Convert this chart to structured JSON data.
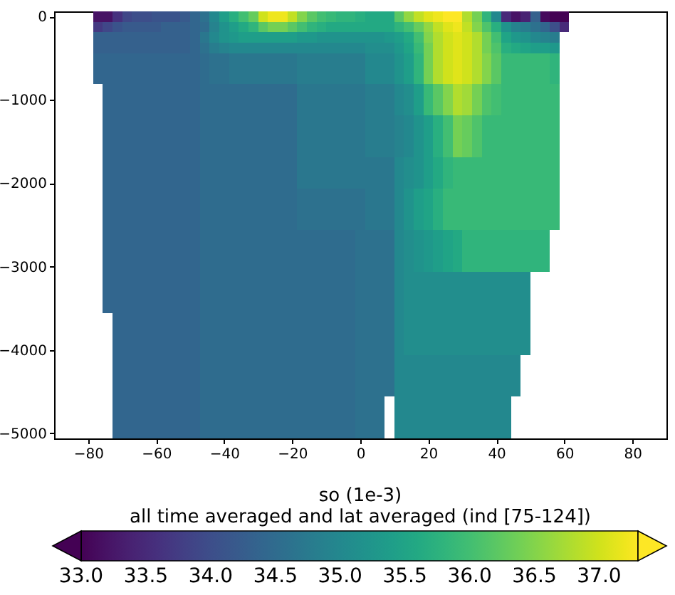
{
  "chart_data": {
    "type": "heatmap",
    "clabel": "so (1e-3)\nall time averaged and lat averaged (ind [75-124])",
    "categories": [
      null,
      null,
      null,
      "−80",
      null,
      null,
      null,
      null,
      null,
      null,
      "−60",
      null,
      null,
      null,
      null,
      null,
      null,
      "−40",
      null,
      null,
      null,
      null,
      null,
      null,
      "−20",
      null,
      null,
      null,
      null,
      null,
      null,
      "0",
      null,
      null,
      null,
      null,
      null,
      null,
      "20",
      null,
      null,
      null,
      null,
      null,
      null,
      "40",
      null,
      null,
      null,
      null,
      null,
      null,
      "60",
      null,
      null,
      null,
      null,
      null,
      null,
      "80",
      null,
      null,
      null
    ],
    "y_categories": [
      "0",
      null,
      null,
      null,
      null,
      null,
      null,
      null,
      "−1000",
      null,
      null,
      null,
      null,
      null,
      null,
      null,
      "−2000",
      null,
      null,
      null,
      null,
      null,
      null,
      null,
      "−3000",
      null,
      null,
      null,
      null,
      null,
      null,
      null,
      "−4000",
      null,
      null,
      null,
      null,
      null,
      null,
      null,
      "−5000"
    ],
    "clim": [
      33.0,
      37.3
    ],
    "cticks": [
      {
        "value": 33,
        "label": "33.0"
      },
      {
        "value": 33.5,
        "label": "33.5"
      },
      {
        "value": 34,
        "label": "34.0"
      },
      {
        "value": 34.5,
        "label": "34.5"
      },
      {
        "value": 35,
        "label": "35.0"
      },
      {
        "value": 35.5,
        "label": "35.5"
      },
      {
        "value": 36,
        "label": "36.0"
      },
      {
        "value": 36.5,
        "label": "36.5"
      },
      {
        "value": 37,
        "label": "37.0"
      }
    ],
    "cells": [
      [
        null,
        null,
        null,
        null,
        33.2,
        33.2,
        33.6,
        33.9,
        34.0,
        34.0,
        34.1,
        34.1,
        34.1,
        34.2,
        34.4,
        34.6,
        35.0,
        35.4,
        35.7,
        36.0,
        36.3,
        37.0,
        37.2,
        37.2,
        36.9,
        36.5,
        36.2,
        36.0,
        35.9,
        35.8,
        35.8,
        35.7,
        35.6,
        35.6,
        35.6,
        36.2,
        36.6,
        36.9,
        37.1,
        37.2,
        37.3,
        37.3,
        36.8,
        36.4,
        35.8,
        35.0,
        33.5,
        33.2,
        33.4,
        34.3,
        33.1,
        33.0,
        33.0,
        null,
        null,
        null,
        null,
        null,
        null,
        null,
        null,
        null,
        null
      ],
      [
        null,
        null,
        null,
        null,
        33.7,
        33.9,
        34.1,
        34.2,
        34.2,
        34.2,
        34.2,
        34.3,
        34.3,
        34.3,
        34.4,
        34.5,
        34.9,
        35.2,
        35.4,
        35.6,
        35.8,
        36.2,
        36.4,
        36.4,
        36.2,
        36.0,
        35.8,
        35.7,
        35.6,
        35.6,
        35.6,
        35.6,
        35.6,
        35.6,
        35.6,
        35.8,
        36.0,
        36.3,
        36.6,
        36.9,
        37.1,
        37.2,
        36.9,
        36.5,
        36.1,
        35.7,
        35.2,
        34.9,
        34.8,
        34.6,
        34.4,
        34.0,
        33.5,
        null,
        null,
        null,
        null,
        null,
        null,
        null,
        null,
        null,
        null
      ],
      [
        null,
        null,
        null,
        null,
        34.3,
        34.3,
        34.3,
        34.3,
        34.3,
        34.3,
        34.3,
        34.3,
        34.3,
        34.3,
        34.4,
        34.7,
        35.0,
        35.2,
        35.3,
        35.4,
        35.4,
        35.4,
        35.4,
        35.4,
        35.4,
        35.3,
        35.3,
        35.2,
        35.2,
        35.2,
        35.2,
        35.2,
        35.2,
        35.2,
        35.3,
        35.4,
        35.6,
        36.0,
        36.5,
        36.8,
        37.0,
        37.1,
        37.0,
        36.8,
        36.4,
        36.0,
        35.5,
        35.3,
        35.2,
        35.0,
        34.9,
        34.8,
        null,
        null,
        null,
        null,
        null,
        null,
        null,
        null,
        null,
        null,
        null
      ],
      [
        null,
        null,
        null,
        null,
        34.3,
        34.3,
        34.3,
        34.3,
        34.3,
        34.3,
        34.3,
        34.3,
        34.3,
        34.3,
        34.4,
        34.6,
        34.8,
        34.9,
        35.0,
        35.0,
        35.0,
        35.0,
        35.0,
        35.0,
        35.0,
        35.0,
        35.0,
        35.0,
        35.0,
        35.0,
        35.0,
        35.0,
        35.1,
        35.1,
        35.1,
        35.3,
        35.5,
        35.9,
        36.4,
        36.8,
        37.0,
        37.1,
        37.0,
        36.8,
        36.4,
        36.1,
        35.7,
        35.6,
        35.5,
        35.4,
        35.4,
        35.3,
        null,
        null,
        null,
        null,
        null,
        null,
        null,
        null,
        null,
        null,
        null
      ],
      [
        null,
        null,
        null,
        null,
        34.4,
        34.4,
        34.4,
        34.4,
        34.4,
        34.4,
        34.4,
        34.4,
        34.4,
        34.4,
        34.4,
        34.5,
        34.6,
        34.6,
        34.7,
        34.7,
        34.7,
        34.7,
        34.7,
        34.7,
        34.7,
        34.8,
        34.8,
        34.8,
        34.8,
        34.8,
        34.8,
        34.8,
        35.0,
        35.0,
        35.0,
        35.2,
        35.4,
        35.8,
        36.4,
        36.8,
        37.0,
        37.1,
        37.0,
        36.8,
        36.5,
        36.2,
        35.9,
        35.9,
        35.9,
        35.9,
        35.9,
        35.8,
        null,
        null,
        null,
        null,
        null,
        null,
        null,
        null,
        null,
        null,
        null
      ],
      [
        null,
        null,
        null,
        null,
        34.4,
        34.4,
        34.4,
        34.4,
        34.4,
        34.4,
        34.4,
        34.4,
        34.4,
        34.4,
        34.4,
        34.5,
        34.6,
        34.6,
        34.7,
        34.7,
        34.7,
        34.7,
        34.7,
        34.7,
        34.7,
        34.8,
        34.8,
        34.8,
        34.8,
        34.8,
        34.8,
        34.8,
        35.0,
        35.0,
        35.0,
        35.2,
        35.4,
        35.8,
        36.4,
        36.8,
        37.0,
        37.1,
        37.0,
        36.8,
        36.5,
        36.2,
        35.9,
        35.9,
        35.9,
        35.9,
        35.9,
        35.8,
        null,
        null,
        null,
        null,
        null,
        null,
        null,
        null,
        null,
        null,
        null
      ],
      [
        null,
        null,
        null,
        null,
        34.4,
        34.4,
        34.4,
        34.4,
        34.4,
        34.4,
        34.4,
        34.4,
        34.4,
        34.4,
        34.4,
        34.5,
        34.6,
        34.6,
        34.7,
        34.7,
        34.7,
        34.7,
        34.7,
        34.7,
        34.7,
        34.8,
        34.8,
        34.8,
        34.8,
        34.8,
        34.8,
        34.8,
        35.0,
        35.0,
        35.0,
        35.2,
        35.4,
        35.8,
        36.4,
        36.8,
        37.0,
        37.1,
        37.0,
        36.8,
        36.5,
        36.2,
        35.9,
        35.9,
        35.9,
        35.9,
        35.9,
        35.8,
        null,
        null,
        null,
        null,
        null,
        null,
        null,
        null,
        null,
        null,
        null
      ],
      [
        null,
        null,
        null,
        null,
        null,
        34.4,
        34.4,
        34.4,
        34.4,
        34.4,
        34.4,
        34.4,
        34.4,
        34.4,
        34.4,
        34.5,
        34.5,
        34.5,
        34.5,
        34.5,
        34.5,
        34.5,
        34.5,
        34.5,
        34.5,
        34.7,
        34.7,
        34.7,
        34.7,
        34.7,
        34.7,
        34.7,
        34.8,
        34.8,
        34.8,
        35.0,
        35.1,
        35.4,
        35.9,
        36.2,
        36.5,
        36.8,
        36.7,
        36.4,
        36.1,
        36.0,
        35.9,
        35.9,
        35.9,
        35.9,
        35.9,
        35.9,
        null,
        null,
        null,
        null,
        null,
        null,
        null,
        null,
        null,
        null,
        null
      ],
      [
        null,
        null,
        null,
        null,
        null,
        34.4,
        34.4,
        34.4,
        34.4,
        34.4,
        34.4,
        34.4,
        34.4,
        34.4,
        34.4,
        34.5,
        34.5,
        34.5,
        34.5,
        34.5,
        34.5,
        34.5,
        34.5,
        34.5,
        34.5,
        34.7,
        34.7,
        34.7,
        34.7,
        34.7,
        34.7,
        34.7,
        34.8,
        34.8,
        34.8,
        35.0,
        35.1,
        35.4,
        35.9,
        36.2,
        36.5,
        36.8,
        36.7,
        36.4,
        36.1,
        36.0,
        35.9,
        35.9,
        35.9,
        35.9,
        35.9,
        35.9,
        null,
        null,
        null,
        null,
        null,
        null,
        null,
        null,
        null,
        null,
        null
      ],
      [
        null,
        null,
        null,
        null,
        null,
        34.4,
        34.4,
        34.4,
        34.4,
        34.4,
        34.4,
        34.4,
        34.4,
        34.4,
        34.4,
        34.5,
        34.5,
        34.5,
        34.5,
        34.5,
        34.5,
        34.5,
        34.5,
        34.5,
        34.5,
        34.7,
        34.7,
        34.7,
        34.7,
        34.7,
        34.7,
        34.7,
        34.8,
        34.8,
        34.8,
        35.0,
        35.1,
        35.4,
        35.9,
        36.2,
        36.5,
        36.8,
        36.7,
        36.4,
        36.1,
        36.0,
        35.9,
        35.9,
        35.9,
        35.9,
        35.9,
        35.9,
        null,
        null,
        null,
        null,
        null,
        null,
        null,
        null,
        null,
        null,
        null
      ],
      [
        null,
        null,
        null,
        null,
        null,
        34.4,
        34.4,
        34.4,
        34.4,
        34.4,
        34.4,
        34.4,
        34.4,
        34.4,
        34.4,
        34.5,
        34.5,
        34.5,
        34.5,
        34.5,
        34.5,
        34.5,
        34.5,
        34.5,
        34.5,
        34.7,
        34.7,
        34.7,
        34.7,
        34.7,
        34.7,
        34.7,
        34.8,
        34.8,
        34.8,
        34.9,
        35.0,
        35.2,
        35.4,
        35.7,
        36.0,
        36.4,
        36.3,
        36.1,
        35.9,
        35.9,
        35.9,
        35.9,
        35.9,
        35.9,
        35.9,
        35.9,
        null,
        null,
        null,
        null,
        null,
        null,
        null,
        null,
        null,
        null,
        null
      ],
      [
        null,
        null,
        null,
        null,
        null,
        34.4,
        34.4,
        34.4,
        34.4,
        34.4,
        34.4,
        34.4,
        34.4,
        34.4,
        34.4,
        34.5,
        34.5,
        34.5,
        34.5,
        34.5,
        34.5,
        34.5,
        34.5,
        34.5,
        34.5,
        34.7,
        34.7,
        34.7,
        34.7,
        34.7,
        34.7,
        34.7,
        34.8,
        34.8,
        34.8,
        34.9,
        35.0,
        35.2,
        35.4,
        35.7,
        36.0,
        36.4,
        36.3,
        36.1,
        35.9,
        35.9,
        35.9,
        35.9,
        35.9,
        35.9,
        35.9,
        35.9,
        null,
        null,
        null,
        null,
        null,
        null,
        null,
        null,
        null,
        null,
        null
      ],
      [
        null,
        null,
        null,
        null,
        null,
        34.4,
        34.4,
        34.4,
        34.4,
        34.4,
        34.4,
        34.4,
        34.4,
        34.4,
        34.4,
        34.5,
        34.5,
        34.5,
        34.5,
        34.5,
        34.5,
        34.5,
        34.5,
        34.5,
        34.5,
        34.7,
        34.7,
        34.7,
        34.7,
        34.7,
        34.7,
        34.7,
        34.8,
        34.8,
        34.8,
        34.9,
        35.0,
        35.2,
        35.4,
        35.7,
        36.0,
        36.4,
        36.3,
        36.1,
        35.9,
        35.9,
        35.9,
        35.9,
        35.9,
        35.9,
        35.9,
        35.9,
        null,
        null,
        null,
        null,
        null,
        null,
        null,
        null,
        null,
        null,
        null
      ],
      [
        null,
        null,
        null,
        null,
        null,
        34.4,
        34.4,
        34.4,
        34.4,
        34.4,
        34.4,
        34.4,
        34.4,
        34.4,
        34.4,
        34.5,
        34.5,
        34.5,
        34.5,
        34.5,
        34.5,
        34.5,
        34.5,
        34.5,
        34.5,
        34.7,
        34.7,
        34.7,
        34.7,
        34.7,
        34.7,
        34.7,
        34.8,
        34.8,
        34.8,
        34.9,
        35.0,
        35.2,
        35.4,
        35.7,
        36.0,
        36.4,
        36.3,
        36.1,
        35.9,
        35.9,
        35.9,
        35.9,
        35.9,
        35.9,
        35.9,
        35.9,
        null,
        null,
        null,
        null,
        null,
        null,
        null,
        null,
        null,
        null,
        null
      ],
      [
        null,
        null,
        null,
        null,
        null,
        34.4,
        34.4,
        34.4,
        34.4,
        34.4,
        34.4,
        34.4,
        34.4,
        34.4,
        34.4,
        34.5,
        34.5,
        34.5,
        34.5,
        34.5,
        34.5,
        34.5,
        34.5,
        34.5,
        34.5,
        34.7,
        34.7,
        34.7,
        34.7,
        34.7,
        34.7,
        34.7,
        34.7,
        34.7,
        34.7,
        35.0,
        35.1,
        35.2,
        35.4,
        35.6,
        35.8,
        35.9,
        35.9,
        35.9,
        35.9,
        35.9,
        35.9,
        35.9,
        35.9,
        35.9,
        35.9,
        35.9,
        null,
        null,
        null,
        null,
        null,
        null,
        null,
        null,
        null,
        null,
        null
      ],
      [
        null,
        null,
        null,
        null,
        null,
        34.4,
        34.4,
        34.4,
        34.4,
        34.4,
        34.4,
        34.4,
        34.4,
        34.4,
        34.4,
        34.5,
        34.5,
        34.5,
        34.5,
        34.5,
        34.5,
        34.5,
        34.5,
        34.5,
        34.5,
        34.7,
        34.7,
        34.7,
        34.7,
        34.7,
        34.7,
        34.7,
        34.7,
        34.7,
        34.7,
        35.0,
        35.1,
        35.2,
        35.4,
        35.6,
        35.8,
        35.9,
        35.9,
        35.9,
        35.9,
        35.9,
        35.9,
        35.9,
        35.9,
        35.9,
        35.9,
        35.9,
        null,
        null,
        null,
        null,
        null,
        null,
        null,
        null,
        null,
        null,
        null
      ],
      [
        null,
        null,
        null,
        null,
        null,
        34.4,
        34.4,
        34.4,
        34.4,
        34.4,
        34.4,
        34.4,
        34.4,
        34.4,
        34.4,
        34.5,
        34.5,
        34.5,
        34.5,
        34.5,
        34.5,
        34.5,
        34.5,
        34.5,
        34.5,
        34.7,
        34.7,
        34.7,
        34.7,
        34.7,
        34.7,
        34.7,
        34.7,
        34.7,
        34.7,
        35.0,
        35.1,
        35.2,
        35.4,
        35.6,
        35.8,
        35.9,
        35.9,
        35.9,
        35.9,
        35.9,
        35.9,
        35.9,
        35.9,
        35.9,
        35.9,
        35.9,
        null,
        null,
        null,
        null,
        null,
        null,
        null,
        null,
        null,
        null,
        null
      ],
      [
        null,
        null,
        null,
        null,
        null,
        34.4,
        34.4,
        34.4,
        34.4,
        34.4,
        34.4,
        34.4,
        34.4,
        34.4,
        34.4,
        34.5,
        34.5,
        34.5,
        34.5,
        34.5,
        34.5,
        34.5,
        34.5,
        34.5,
        34.5,
        34.6,
        34.6,
        34.6,
        34.6,
        34.6,
        34.6,
        34.6,
        34.7,
        34.7,
        34.7,
        35.0,
        35.2,
        35.4,
        35.5,
        35.7,
        35.9,
        35.9,
        35.9,
        35.9,
        35.9,
        35.9,
        35.9,
        35.9,
        35.9,
        35.9,
        35.9,
        35.9,
        null,
        null,
        null,
        null,
        null,
        null,
        null,
        null,
        null,
        null,
        null
      ],
      [
        null,
        null,
        null,
        null,
        null,
        34.4,
        34.4,
        34.4,
        34.4,
        34.4,
        34.4,
        34.4,
        34.4,
        34.4,
        34.4,
        34.5,
        34.5,
        34.5,
        34.5,
        34.5,
        34.5,
        34.5,
        34.5,
        34.5,
        34.5,
        34.6,
        34.6,
        34.6,
        34.6,
        34.6,
        34.6,
        34.6,
        34.7,
        34.7,
        34.7,
        35.0,
        35.2,
        35.4,
        35.5,
        35.7,
        35.9,
        35.9,
        35.9,
        35.9,
        35.9,
        35.9,
        35.9,
        35.9,
        35.9,
        35.9,
        35.9,
        35.9,
        null,
        null,
        null,
        null,
        null,
        null,
        null,
        null,
        null,
        null,
        null
      ],
      [
        null,
        null,
        null,
        null,
        null,
        34.4,
        34.4,
        34.4,
        34.4,
        34.4,
        34.4,
        34.4,
        34.4,
        34.4,
        34.4,
        34.5,
        34.5,
        34.5,
        34.5,
        34.5,
        34.5,
        34.5,
        34.5,
        34.5,
        34.5,
        34.6,
        34.6,
        34.6,
        34.6,
        34.6,
        34.6,
        34.6,
        34.7,
        34.7,
        34.7,
        35.0,
        35.2,
        35.4,
        35.5,
        35.7,
        35.9,
        35.9,
        35.9,
        35.9,
        35.9,
        35.9,
        35.9,
        35.9,
        35.9,
        35.9,
        35.9,
        35.9,
        null,
        null,
        null,
        null,
        null,
        null,
        null,
        null,
        null,
        null,
        null
      ],
      [
        null,
        null,
        null,
        null,
        null,
        34.4,
        34.4,
        34.4,
        34.4,
        34.4,
        34.4,
        34.4,
        34.4,
        34.4,
        34.4,
        34.5,
        34.5,
        34.5,
        34.5,
        34.5,
        34.5,
        34.5,
        34.5,
        34.5,
        34.5,
        34.6,
        34.6,
        34.6,
        34.6,
        34.6,
        34.6,
        34.6,
        34.7,
        34.7,
        34.7,
        35.0,
        35.2,
        35.4,
        35.5,
        35.7,
        35.9,
        35.9,
        35.9,
        35.9,
        35.9,
        35.9,
        35.9,
        35.9,
        35.9,
        35.9,
        35.9,
        35.9,
        null,
        null,
        null,
        null,
        null,
        null,
        null,
        null,
        null,
        null,
        null
      ],
      [
        null,
        null,
        null,
        null,
        null,
        34.4,
        34.4,
        34.4,
        34.4,
        34.4,
        34.4,
        34.4,
        34.4,
        34.4,
        34.4,
        34.5,
        34.5,
        34.5,
        34.5,
        34.5,
        34.5,
        34.5,
        34.5,
        34.5,
        34.5,
        34.5,
        34.5,
        34.5,
        34.5,
        34.5,
        34.5,
        34.6,
        34.6,
        34.6,
        34.6,
        35.0,
        35.1,
        35.2,
        35.3,
        35.4,
        35.5,
        35.6,
        35.8,
        35.8,
        35.8,
        35.8,
        35.8,
        35.8,
        35.8,
        35.8,
        35.8,
        null,
        null,
        null,
        null,
        null,
        null,
        null,
        null,
        null,
        null,
        null,
        null
      ],
      [
        null,
        null,
        null,
        null,
        null,
        34.4,
        34.4,
        34.4,
        34.4,
        34.4,
        34.4,
        34.4,
        34.4,
        34.4,
        34.4,
        34.5,
        34.5,
        34.5,
        34.5,
        34.5,
        34.5,
        34.5,
        34.5,
        34.5,
        34.5,
        34.5,
        34.5,
        34.5,
        34.5,
        34.5,
        34.5,
        34.6,
        34.6,
        34.6,
        34.6,
        35.0,
        35.1,
        35.2,
        35.3,
        35.4,
        35.5,
        35.6,
        35.8,
        35.8,
        35.8,
        35.8,
        35.8,
        35.8,
        35.8,
        35.8,
        35.8,
        null,
        null,
        null,
        null,
        null,
        null,
        null,
        null,
        null,
        null,
        null,
        null
      ],
      [
        null,
        null,
        null,
        null,
        null,
        34.4,
        34.4,
        34.4,
        34.4,
        34.4,
        34.4,
        34.4,
        34.4,
        34.4,
        34.4,
        34.5,
        34.5,
        34.5,
        34.5,
        34.5,
        34.5,
        34.5,
        34.5,
        34.5,
        34.5,
        34.5,
        34.5,
        34.5,
        34.5,
        34.5,
        34.5,
        34.6,
        34.6,
        34.6,
        34.6,
        35.0,
        35.1,
        35.2,
        35.3,
        35.4,
        35.5,
        35.6,
        35.8,
        35.8,
        35.8,
        35.8,
        35.8,
        35.8,
        35.8,
        35.8,
        35.8,
        null,
        null,
        null,
        null,
        null,
        null,
        null,
        null,
        null,
        null,
        null,
        null
      ],
      [
        null,
        null,
        null,
        null,
        null,
        34.4,
        34.4,
        34.4,
        34.4,
        34.4,
        34.4,
        34.4,
        34.4,
        34.4,
        34.4,
        34.5,
        34.5,
        34.5,
        34.5,
        34.5,
        34.5,
        34.5,
        34.5,
        34.5,
        34.5,
        34.5,
        34.5,
        34.5,
        34.5,
        34.5,
        34.5,
        34.6,
        34.6,
        34.6,
        34.6,
        35.0,
        35.1,
        35.2,
        35.3,
        35.4,
        35.5,
        35.6,
        35.8,
        35.8,
        35.8,
        35.8,
        35.8,
        35.8,
        35.8,
        35.8,
        35.8,
        null,
        null,
        null,
        null,
        null,
        null,
        null,
        null,
        null,
        null,
        null,
        null
      ],
      [
        null,
        null,
        null,
        null,
        null,
        34.4,
        34.4,
        34.4,
        34.4,
        34.4,
        34.4,
        34.4,
        34.4,
        34.4,
        34.4,
        34.5,
        34.5,
        34.5,
        34.5,
        34.5,
        34.5,
        34.5,
        34.5,
        34.5,
        34.5,
        34.5,
        34.5,
        34.5,
        34.5,
        34.5,
        34.5,
        34.6,
        34.6,
        34.6,
        34.6,
        35.0,
        35.1,
        35.1,
        35.1,
        35.1,
        35.1,
        35.1,
        35.1,
        35.1,
        35.1,
        35.1,
        35.1,
        35.1,
        35.1,
        null,
        null,
        null,
        null,
        null,
        null,
        null,
        null,
        null,
        null,
        null,
        null,
        null,
        null
      ],
      [
        null,
        null,
        null,
        null,
        null,
        34.4,
        34.4,
        34.4,
        34.4,
        34.4,
        34.4,
        34.4,
        34.4,
        34.4,
        34.4,
        34.5,
        34.5,
        34.5,
        34.5,
        34.5,
        34.5,
        34.5,
        34.5,
        34.5,
        34.5,
        34.5,
        34.5,
        34.5,
        34.5,
        34.5,
        34.5,
        34.6,
        34.6,
        34.6,
        34.6,
        35.0,
        35.1,
        35.1,
        35.1,
        35.1,
        35.1,
        35.1,
        35.1,
        35.1,
        35.1,
        35.1,
        35.1,
        35.1,
        35.1,
        null,
        null,
        null,
        null,
        null,
        null,
        null,
        null,
        null,
        null,
        null,
        null,
        null,
        null
      ],
      [
        null,
        null,
        null,
        null,
        null,
        34.4,
        34.4,
        34.4,
        34.4,
        34.4,
        34.4,
        34.4,
        34.4,
        34.4,
        34.4,
        34.5,
        34.5,
        34.5,
        34.5,
        34.5,
        34.5,
        34.5,
        34.5,
        34.5,
        34.5,
        34.5,
        34.5,
        34.5,
        34.5,
        34.5,
        34.5,
        34.6,
        34.6,
        34.6,
        34.6,
        35.0,
        35.1,
        35.1,
        35.1,
        35.1,
        35.1,
        35.1,
        35.1,
        35.1,
        35.1,
        35.1,
        35.1,
        35.1,
        35.1,
        null,
        null,
        null,
        null,
        null,
        null,
        null,
        null,
        null,
        null,
        null,
        null,
        null,
        null
      ],
      [
        null,
        null,
        null,
        null,
        null,
        34.4,
        34.4,
        34.4,
        34.4,
        34.4,
        34.4,
        34.4,
        34.4,
        34.4,
        34.4,
        34.5,
        34.5,
        34.5,
        34.5,
        34.5,
        34.5,
        34.5,
        34.5,
        34.5,
        34.5,
        34.5,
        34.5,
        34.5,
        34.5,
        34.5,
        34.5,
        34.6,
        34.6,
        34.6,
        34.6,
        35.0,
        35.1,
        35.1,
        35.1,
        35.1,
        35.1,
        35.1,
        35.1,
        35.1,
        35.1,
        35.1,
        35.1,
        35.1,
        35.1,
        null,
        null,
        null,
        null,
        null,
        null,
        null,
        null,
        null,
        null,
        null,
        null,
        null,
        null
      ],
      [
        null,
        null,
        null,
        null,
        null,
        null,
        34.4,
        34.4,
        34.4,
        34.4,
        34.4,
        34.4,
        34.4,
        34.4,
        34.4,
        34.5,
        34.5,
        34.5,
        34.5,
        34.5,
        34.5,
        34.5,
        34.5,
        34.5,
        34.5,
        34.5,
        34.5,
        34.5,
        34.5,
        34.5,
        34.5,
        34.6,
        34.6,
        34.6,
        34.6,
        35.0,
        35.1,
        35.1,
        35.1,
        35.1,
        35.1,
        35.1,
        35.1,
        35.1,
        35.1,
        35.1,
        35.1,
        35.1,
        35.1,
        null,
        null,
        null,
        null,
        null,
        null,
        null,
        null,
        null,
        null,
        null,
        null,
        null,
        null
      ],
      [
        null,
        null,
        null,
        null,
        null,
        null,
        34.4,
        34.4,
        34.4,
        34.4,
        34.4,
        34.4,
        34.4,
        34.4,
        34.4,
        34.5,
        34.5,
        34.5,
        34.5,
        34.5,
        34.5,
        34.5,
        34.5,
        34.5,
        34.5,
        34.5,
        34.5,
        34.5,
        34.5,
        34.5,
        34.5,
        34.6,
        34.6,
        34.6,
        34.6,
        35.0,
        35.1,
        35.1,
        35.1,
        35.1,
        35.1,
        35.1,
        35.1,
        35.1,
        35.1,
        35.1,
        35.1,
        35.1,
        35.1,
        null,
        null,
        null,
        null,
        null,
        null,
        null,
        null,
        null,
        null,
        null,
        null,
        null,
        null
      ],
      [
        null,
        null,
        null,
        null,
        null,
        null,
        34.4,
        34.4,
        34.4,
        34.4,
        34.4,
        34.4,
        34.4,
        34.4,
        34.4,
        34.5,
        34.5,
        34.5,
        34.5,
        34.5,
        34.5,
        34.5,
        34.5,
        34.5,
        34.5,
        34.5,
        34.5,
        34.5,
        34.5,
        34.5,
        34.5,
        34.6,
        34.6,
        34.6,
        34.6,
        35.0,
        35.1,
        35.1,
        35.1,
        35.1,
        35.1,
        35.1,
        35.1,
        35.1,
        35.1,
        35.1,
        35.1,
        35.1,
        35.1,
        null,
        null,
        null,
        null,
        null,
        null,
        null,
        null,
        null,
        null,
        null,
        null,
        null,
        null
      ],
      [
        null,
        null,
        null,
        null,
        null,
        null,
        34.4,
        34.4,
        34.4,
        34.4,
        34.4,
        34.4,
        34.4,
        34.4,
        34.4,
        34.5,
        34.5,
        34.5,
        34.5,
        34.5,
        34.5,
        34.5,
        34.5,
        34.5,
        34.5,
        34.5,
        34.5,
        34.5,
        34.5,
        34.5,
        34.5,
        34.6,
        34.6,
        34.6,
        34.6,
        35.0,
        35.1,
        35.1,
        35.1,
        35.1,
        35.1,
        35.1,
        35.1,
        35.1,
        35.1,
        35.1,
        35.1,
        35.1,
        35.1,
        null,
        null,
        null,
        null,
        null,
        null,
        null,
        null,
        null,
        null,
        null,
        null,
        null,
        null
      ],
      [
        null,
        null,
        null,
        null,
        null,
        null,
        34.4,
        34.4,
        34.4,
        34.4,
        34.4,
        34.4,
        34.4,
        34.4,
        34.4,
        34.5,
        34.5,
        34.5,
        34.5,
        34.5,
        34.5,
        34.5,
        34.5,
        34.5,
        34.5,
        34.5,
        34.5,
        34.5,
        34.5,
        34.5,
        34.5,
        34.6,
        34.6,
        34.6,
        34.6,
        35.0,
        35.0,
        35.0,
        35.0,
        35.0,
        35.0,
        35.0,
        35.0,
        35.0,
        35.0,
        35.0,
        35.0,
        35.0,
        null,
        null,
        null,
        null,
        null,
        null,
        null,
        null,
        null,
        null,
        null,
        null,
        null,
        null,
        null
      ],
      [
        null,
        null,
        null,
        null,
        null,
        null,
        34.4,
        34.4,
        34.4,
        34.4,
        34.4,
        34.4,
        34.4,
        34.4,
        34.4,
        34.5,
        34.5,
        34.5,
        34.5,
        34.5,
        34.5,
        34.5,
        34.5,
        34.5,
        34.5,
        34.5,
        34.5,
        34.5,
        34.5,
        34.5,
        34.5,
        34.6,
        34.6,
        34.6,
        34.6,
        35.0,
        35.0,
        35.0,
        35.0,
        35.0,
        35.0,
        35.0,
        35.0,
        35.0,
        35.0,
        35.0,
        35.0,
        35.0,
        null,
        null,
        null,
        null,
        null,
        null,
        null,
        null,
        null,
        null,
        null,
        null,
        null,
        null,
        null
      ],
      [
        null,
        null,
        null,
        null,
        null,
        null,
        34.4,
        34.4,
        34.4,
        34.4,
        34.4,
        34.4,
        34.4,
        34.4,
        34.4,
        34.5,
        34.5,
        34.5,
        34.5,
        34.5,
        34.5,
        34.5,
        34.5,
        34.5,
        34.5,
        34.5,
        34.5,
        34.5,
        34.5,
        34.5,
        34.5,
        34.6,
        34.6,
        34.6,
        34.6,
        35.0,
        35.0,
        35.0,
        35.0,
        35.0,
        35.0,
        35.0,
        35.0,
        35.0,
        35.0,
        35.0,
        35.0,
        35.0,
        null,
        null,
        null,
        null,
        null,
        null,
        null,
        null,
        null,
        null,
        null,
        null,
        null,
        null,
        null
      ],
      [
        null,
        null,
        null,
        null,
        null,
        null,
        34.4,
        34.4,
        34.4,
        34.4,
        34.4,
        34.4,
        34.4,
        34.4,
        34.4,
        34.5,
        34.5,
        34.5,
        34.5,
        34.5,
        34.5,
        34.5,
        34.5,
        34.5,
        34.5,
        34.5,
        34.5,
        34.5,
        34.5,
        34.5,
        34.5,
        34.6,
        34.6,
        34.6,
        34.6,
        35.0,
        35.0,
        35.0,
        35.0,
        35.0,
        35.0,
        35.0,
        35.0,
        35.0,
        35.0,
        35.0,
        35.0,
        35.0,
        null,
        null,
        null,
        null,
        null,
        null,
        null,
        null,
        null,
        null,
        null,
        null,
        null,
        null,
        null
      ],
      [
        null,
        null,
        null,
        null,
        null,
        null,
        34.4,
        34.4,
        34.4,
        34.4,
        34.4,
        34.4,
        34.4,
        34.4,
        34.4,
        34.5,
        34.5,
        34.5,
        34.5,
        34.5,
        34.5,
        34.5,
        34.5,
        34.5,
        34.5,
        34.5,
        34.5,
        34.5,
        34.5,
        34.5,
        34.5,
        34.6,
        34.6,
        34.6,
        null,
        35.0,
        35.0,
        35.0,
        35.0,
        35.0,
        35.0,
        35.0,
        35.0,
        35.0,
        35.0,
        35.0,
        35.0,
        null,
        null,
        null,
        null,
        null,
        null,
        null,
        null,
        null,
        null,
        null,
        null,
        null,
        null,
        null,
        null
      ],
      [
        null,
        null,
        null,
        null,
        null,
        null,
        34.4,
        34.4,
        34.4,
        34.4,
        34.4,
        34.4,
        34.4,
        34.4,
        34.4,
        34.5,
        34.5,
        34.5,
        34.5,
        34.5,
        34.5,
        34.5,
        34.5,
        34.5,
        34.5,
        34.5,
        34.5,
        34.5,
        34.5,
        34.5,
        34.5,
        34.6,
        34.6,
        34.6,
        null,
        35.0,
        35.0,
        35.0,
        35.0,
        35.0,
        35.0,
        35.0,
        35.0,
        35.0,
        35.0,
        35.0,
        35.0,
        null,
        null,
        null,
        null,
        null,
        null,
        null,
        null,
        null,
        null,
        null,
        null,
        null,
        null,
        null,
        null
      ],
      [
        null,
        null,
        null,
        null,
        null,
        null,
        34.4,
        34.4,
        34.4,
        34.4,
        34.4,
        34.4,
        34.4,
        34.4,
        34.4,
        34.5,
        34.5,
        34.5,
        34.5,
        34.5,
        34.5,
        34.5,
        34.5,
        34.5,
        34.5,
        34.5,
        34.5,
        34.5,
        34.5,
        34.5,
        34.5,
        34.6,
        34.6,
        34.6,
        null,
        35.0,
        35.0,
        35.0,
        35.0,
        35.0,
        35.0,
        35.0,
        35.0,
        35.0,
        35.0,
        35.0,
        35.0,
        null,
        null,
        null,
        null,
        null,
        null,
        null,
        null,
        null,
        null,
        null,
        null,
        null,
        null,
        null,
        null
      ],
      [
        null,
        null,
        null,
        null,
        null,
        null,
        34.4,
        34.4,
        34.4,
        34.4,
        34.4,
        34.4,
        34.4,
        34.4,
        34.4,
        34.5,
        34.5,
        34.5,
        34.5,
        34.5,
        34.5,
        34.5,
        34.5,
        34.5,
        34.5,
        34.5,
        34.5,
        34.5,
        34.5,
        34.5,
        34.5,
        34.6,
        34.6,
        34.6,
        null,
        35.0,
        35.0,
        35.0,
        35.0,
        35.0,
        35.0,
        35.0,
        35.0,
        35.0,
        35.0,
        35.0,
        35.0,
        null,
        null,
        null,
        null,
        null,
        null,
        null,
        null,
        null,
        null,
        null,
        null,
        null,
        null,
        null,
        null
      ]
    ]
  }
}
